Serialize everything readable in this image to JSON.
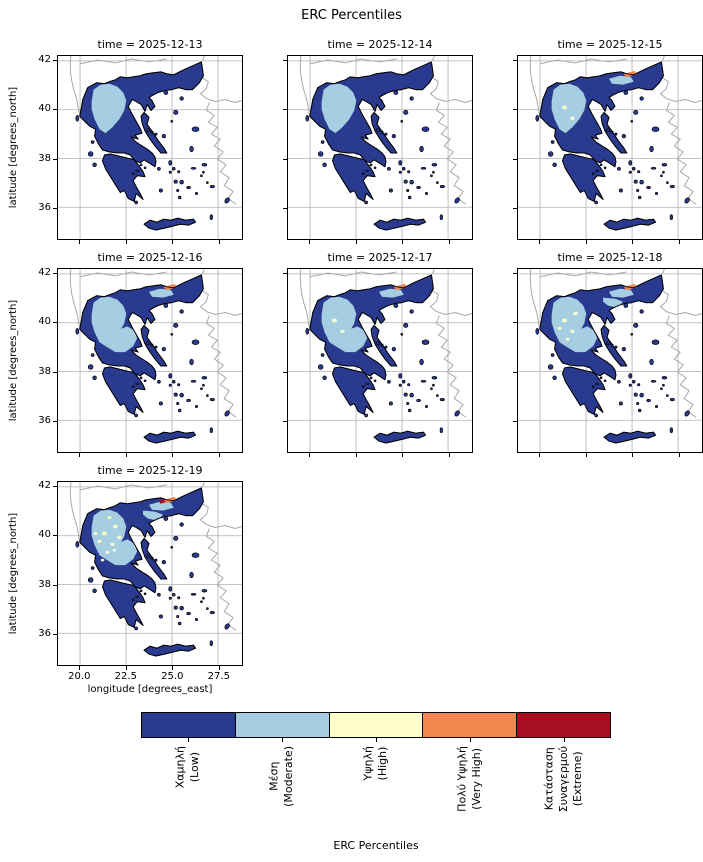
{
  "figure": {
    "title": "ERC Percentiles",
    "background": "#ffffff"
  },
  "axes": {
    "ylabel": "latitude [degrees_north]",
    "xlabel": "longitude [degrees_east]"
  },
  "facets": [
    {
      "title": "time = 2025-12-13",
      "row": 0,
      "col": 0,
      "show_y": true,
      "show_x": false,
      "layers": [
        "moderate-base"
      ]
    },
    {
      "title": "time = 2025-12-14",
      "row": 0,
      "col": 1,
      "show_y": false,
      "show_x": false,
      "layers": [
        "moderate-base"
      ]
    },
    {
      "title": "time = 2025-12-15",
      "row": 0,
      "col": 2,
      "show_y": false,
      "show_x": false,
      "layers": [
        "moderate-base",
        "moderate-ne",
        "high-1",
        "vhigh"
      ]
    },
    {
      "title": "time = 2025-12-16",
      "row": 1,
      "col": 0,
      "show_y": true,
      "show_x": false,
      "layers": [
        "moderate-base",
        "moderate-ext",
        "moderate-ne",
        "vhigh"
      ]
    },
    {
      "title": "time = 2025-12-17",
      "row": 1,
      "col": 1,
      "show_y": false,
      "show_x": false,
      "layers": [
        "moderate-base",
        "moderate-ext",
        "moderate-ne",
        "high-1",
        "vhigh"
      ]
    },
    {
      "title": "time = 2025-12-18",
      "row": 1,
      "col": 2,
      "show_y": false,
      "show_x": false,
      "layers": [
        "moderate-base",
        "moderate-ext",
        "moderate-ne",
        "moderate-ne2",
        "high-1",
        "high-2",
        "vhigh"
      ]
    },
    {
      "title": "time = 2025-12-19",
      "row": 2,
      "col": 0,
      "show_y": true,
      "show_x": true,
      "layers": [
        "moderate-base",
        "moderate-ext",
        "moderate-ne",
        "moderate-ne2",
        "high-1",
        "high-2",
        "high-3",
        "vhigh",
        "extreme"
      ]
    }
  ],
  "colorbar": {
    "title": "ERC Percentiles",
    "categories": [
      {
        "name": "low",
        "label": "Χαμηλή\n(Low)",
        "color": "#2a3b8f"
      },
      {
        "name": "moderate",
        "label": "Μέση\n(Moderate)",
        "color": "#a6cee3"
      },
      {
        "name": "high",
        "label": "Υψηλή\n(High)",
        "color": "#ffffcc"
      },
      {
        "name": "very-high",
        "label": "Πολύ Υψηλή\n(Very High)",
        "color": "#f3854e"
      },
      {
        "name": "extreme",
        "label": "Κατάσταση\nΣυναγερμού\n(Extreme)",
        "color": "#a50f1f"
      }
    ]
  },
  "chart_data": {
    "type": "choropleth_map_small_multiples",
    "title": "ERC Percentiles",
    "region": "Greece",
    "facet_variable": "time",
    "facet_values": [
      "2025-12-13",
      "2025-12-14",
      "2025-12-15",
      "2025-12-16",
      "2025-12-17",
      "2025-12-18",
      "2025-12-19"
    ],
    "xlabel": "longitude [degrees_east]",
    "ylabel": "latitude [degrees_north]",
    "xlim": [
      18.8,
      28.8
    ],
    "ylim": [
      34.7,
      42.2
    ],
    "xticks": [
      20.0,
      22.5,
      25.0,
      27.5
    ],
    "yticks": [
      42,
      38,
      40,
      36
    ],
    "grid": true,
    "legend_position": "bottom horizontal colorbar",
    "categories": [
      "Χαμηλή (Low)",
      "Μέση (Moderate)",
      "Υψηλή (High)",
      "Πολύ Υψηλή (Very High)",
      "Κατάσταση Συναγερμού (Extreme)"
    ],
    "category_colors": [
      "#2a3b8f",
      "#a6cee3",
      "#ffffcc",
      "#f3854e",
      "#a50f1f"
    ],
    "facet_summaries": [
      {
        "time": "2025-12-13",
        "dominant": "Low",
        "notes": "Moderate over NW and central mainland"
      },
      {
        "time": "2025-12-14",
        "dominant": "Low",
        "notes": "Moderate over NW and central mainland"
      },
      {
        "time": "2025-12-15",
        "dominant": "Low",
        "notes": "Moderate spreads into Thrace; small Very High strip on northern border; isolated High spots"
      },
      {
        "time": "2025-12-16",
        "dominant": "Low",
        "notes": "Moderate expands over central mainland; Very High strip on northern border"
      },
      {
        "time": "2025-12-17",
        "dominant": "Low",
        "notes": "Moderate widespread; scattered High spots; Very High strip on northern border"
      },
      {
        "time": "2025-12-18",
        "dominant": "Low",
        "notes": "Moderate widespread; more High spots; Very High strip on northern border"
      },
      {
        "time": "2025-12-19",
        "dominant": "Low",
        "notes": "Moderate covers most of the mainland; many High spots; Very High and Extreme strip on northern border"
      }
    ]
  }
}
